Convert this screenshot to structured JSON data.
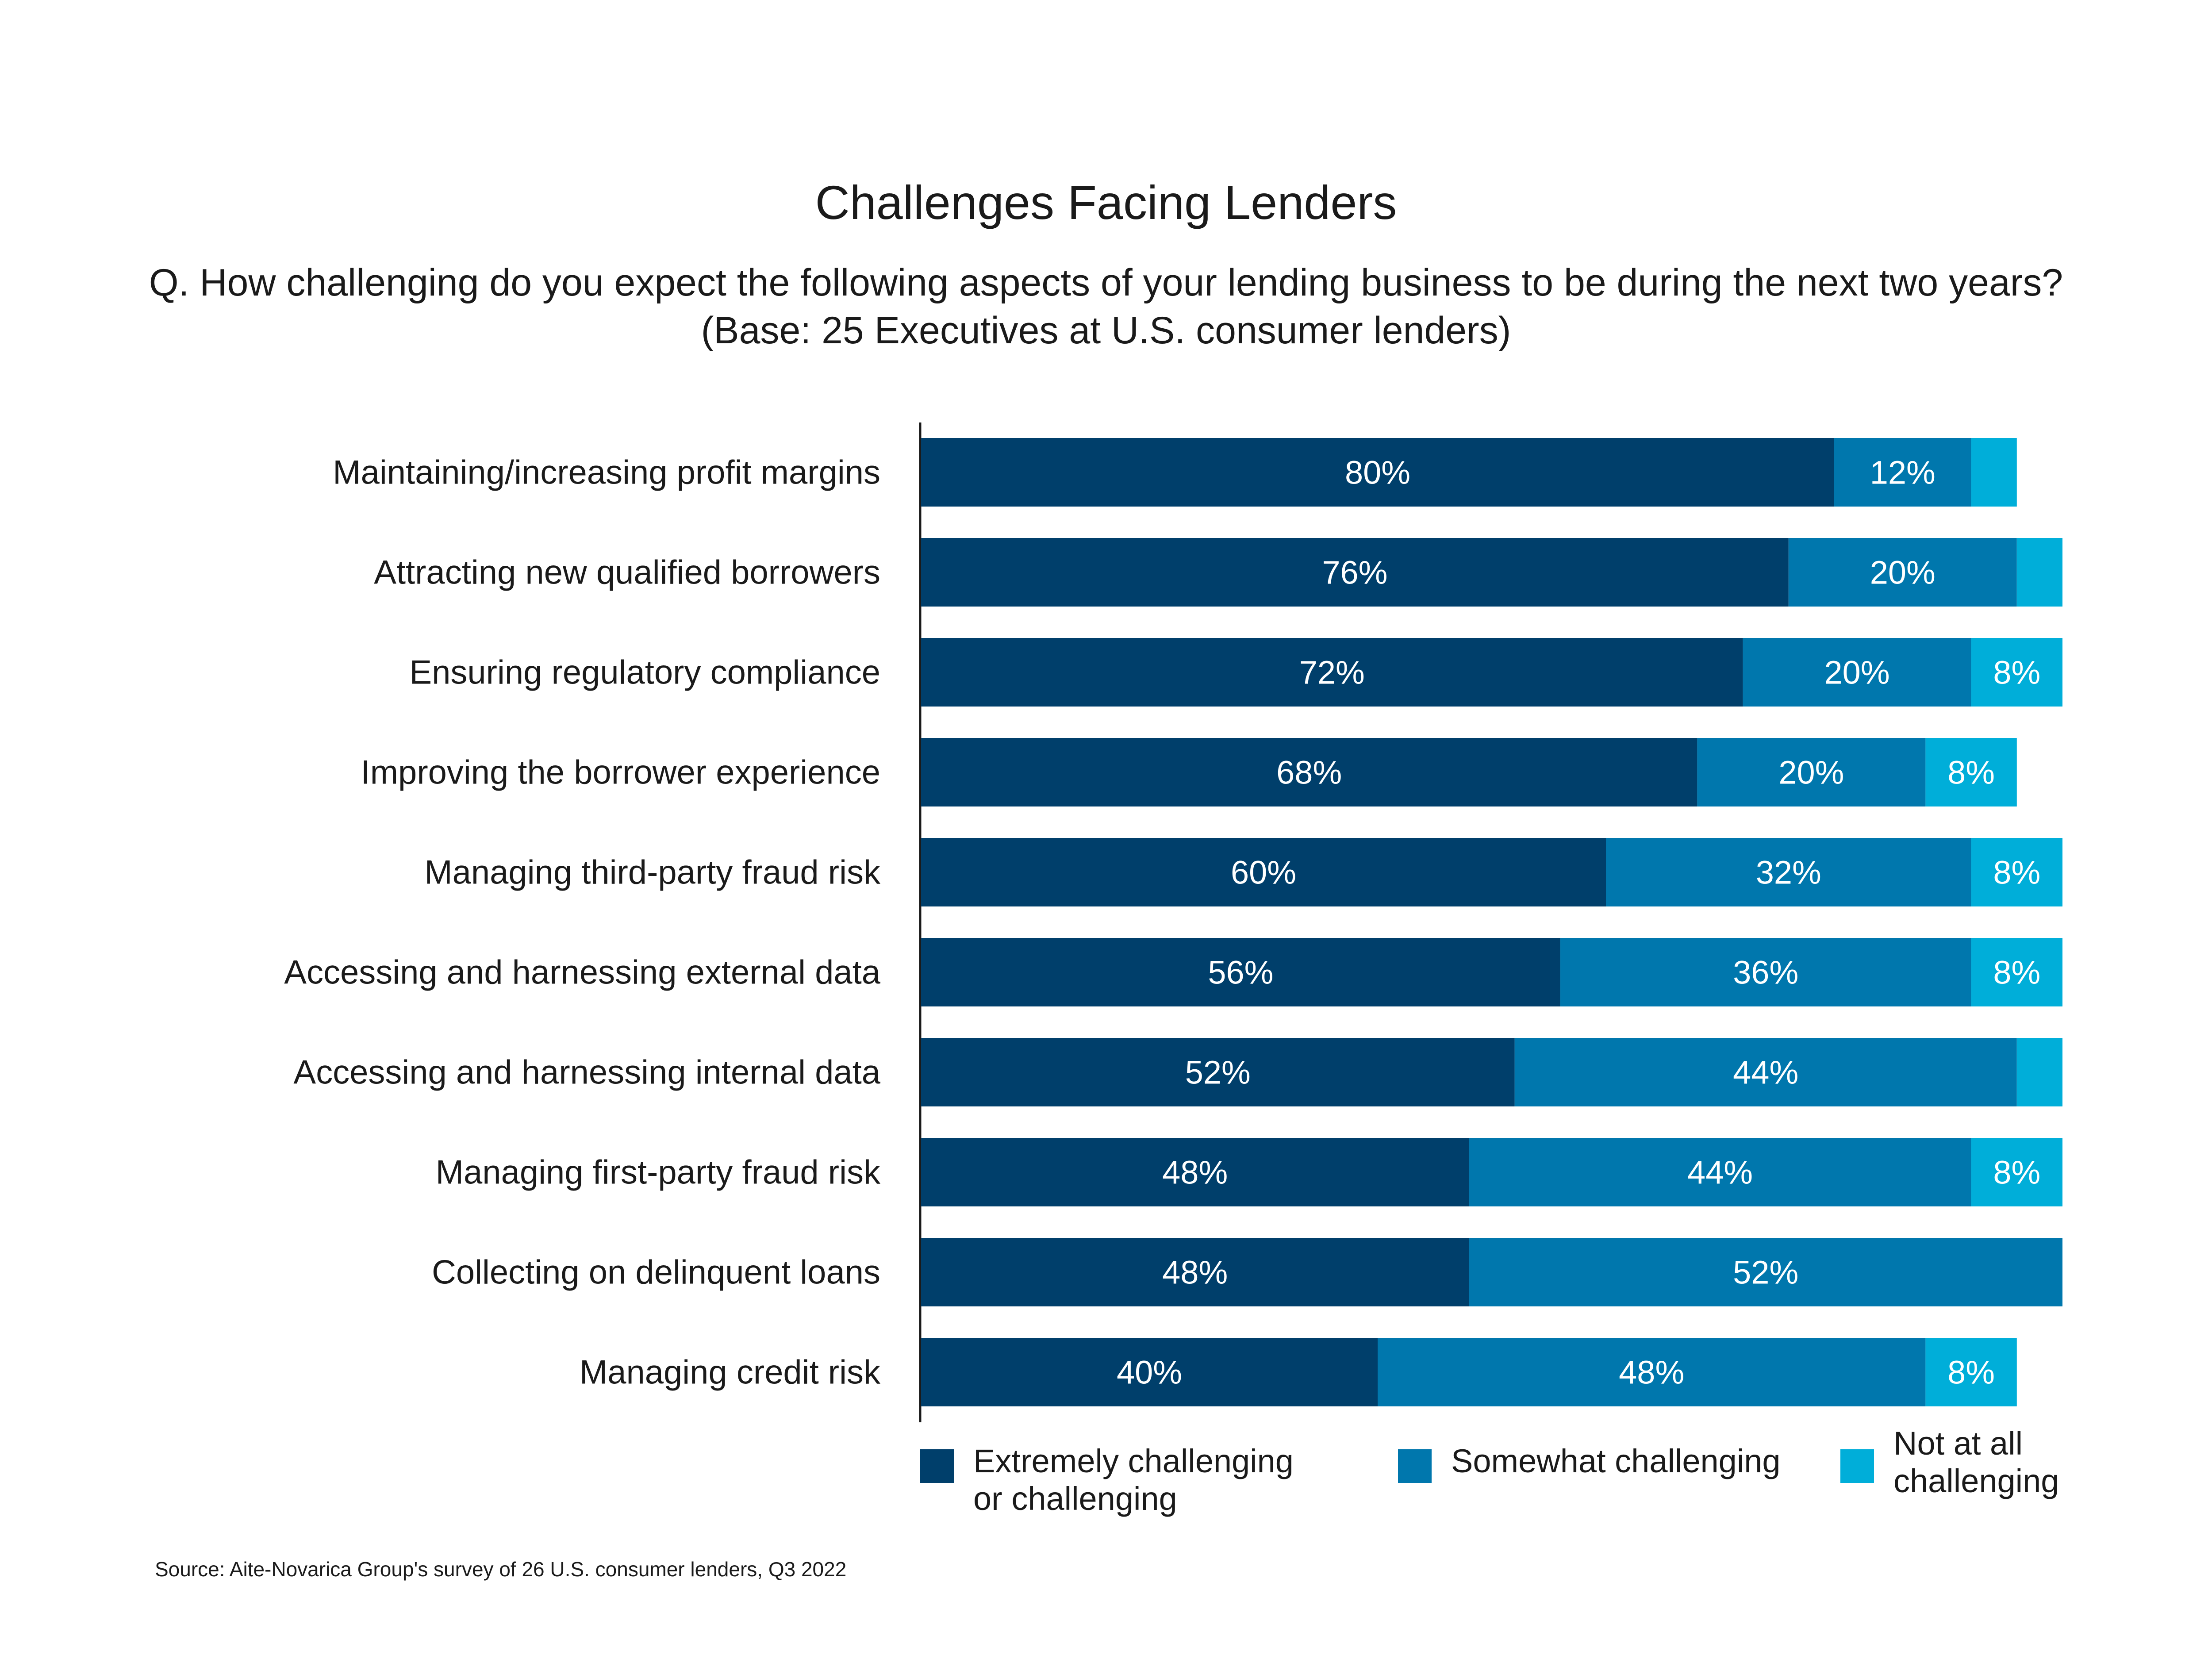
{
  "title": "Challenges Facing Lenders",
  "subtitle_line1": "Q. How challenging do you expect the following aspects of your lending business to be during the next two years?",
  "subtitle_line2": "(Base: 25 Executives at U.S. consumer lenders)",
  "source": "Source: Aite-Novarica Group's survey of 26 U.S. consumer lenders, Q3 2022",
  "legend": [
    {
      "line1": "Extremely challenging",
      "line2": "or challenging",
      "color": "#003f6b"
    },
    {
      "line1": "Somewhat challenging",
      "line2": "",
      "color": "#0077ad"
    },
    {
      "line1": "Not at all",
      "line2": "challenging",
      "color": "#00aed9"
    }
  ],
  "chart_data": {
    "type": "bar",
    "orientation": "horizontal",
    "stacked": true,
    "title": "Challenges Facing Lenders",
    "categories": [
      "Maintaining/increasing profit margins",
      "Attracting new qualified borrowers",
      "Ensuring regulatory compliance",
      "Improving the borrower experience",
      "Managing third-party fraud risk",
      "Accessing and harnessing external data",
      "Accessing and harnessing internal data",
      "Managing first-party fraud risk",
      "Collecting on delinquent loans",
      "Managing credit risk"
    ],
    "series": [
      {
        "name": "Extremely challenging or challenging",
        "color": "#003f6b",
        "values": [
          80,
          76,
          72,
          68,
          60,
          56,
          52,
          48,
          48,
          40
        ],
        "labels": [
          "80%",
          "76%",
          "72%",
          "68%",
          "60%",
          "56%",
          "52%",
          "48%",
          "48%",
          "40%"
        ]
      },
      {
        "name": "Somewhat challenging",
        "color": "#0077ad",
        "values": [
          12,
          20,
          20,
          20,
          32,
          36,
          44,
          44,
          52,
          48
        ],
        "labels": [
          "12%",
          "20%",
          "20%",
          "20%",
          "32%",
          "36%",
          "44%",
          "44%",
          "52%",
          "48%"
        ]
      },
      {
        "name": "Not at all challenging",
        "color": "#00aed9",
        "values": [
          4,
          4,
          8,
          8,
          8,
          8,
          4,
          8,
          0,
          8
        ],
        "labels": [
          "",
          "",
          "8%",
          "8%",
          "8%",
          "8%",
          "",
          "8%",
          "",
          "8%"
        ]
      }
    ],
    "xlim": [
      0,
      100
    ],
    "grid": false,
    "legend_position": "bottom"
  }
}
